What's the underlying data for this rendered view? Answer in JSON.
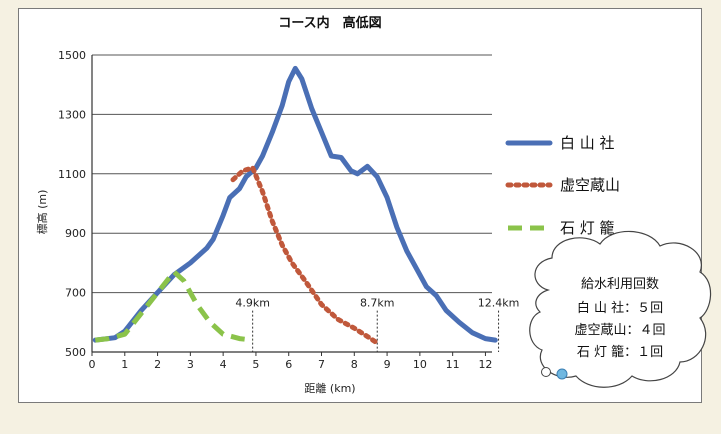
{
  "chart_data": {
    "type": "line",
    "title": "コース内　高低図",
    "xlabel": "距離 (km)",
    "ylabel": "標高 (m)",
    "xlim": [
      0,
      12.2
    ],
    "ylim": [
      500,
      1500
    ],
    "x_ticks": [
      0,
      1,
      2,
      3,
      4,
      5,
      6,
      7,
      8,
      9,
      10,
      11,
      12
    ],
    "y_ticks": [
      500,
      700,
      900,
      1100,
      1300,
      1500
    ],
    "grid": "horizontal",
    "legend_position": "right",
    "series": [
      {
        "name": "白 山 社",
        "color": "#4a6fb5",
        "style": "solid",
        "points": [
          [
            0.1,
            540
          ],
          [
            0.7,
            548
          ],
          [
            1.0,
            570
          ],
          [
            1.5,
            640
          ],
          [
            2.0,
            700
          ],
          [
            2.5,
            760
          ],
          [
            3.0,
            800
          ],
          [
            3.5,
            850
          ],
          [
            3.7,
            880
          ],
          [
            4.0,
            960
          ],
          [
            4.2,
            1020
          ],
          [
            4.5,
            1050
          ],
          [
            4.7,
            1090
          ],
          [
            5.0,
            1120
          ],
          [
            5.2,
            1160
          ],
          [
            5.5,
            1240
          ],
          [
            5.8,
            1330
          ],
          [
            6.0,
            1410
          ],
          [
            6.2,
            1455
          ],
          [
            6.4,
            1420
          ],
          [
            6.7,
            1320
          ],
          [
            7.0,
            1240
          ],
          [
            7.3,
            1160
          ],
          [
            7.6,
            1155
          ],
          [
            7.9,
            1110
          ],
          [
            8.1,
            1100
          ],
          [
            8.4,
            1125
          ],
          [
            8.7,
            1090
          ],
          [
            9.0,
            1020
          ],
          [
            9.3,
            920
          ],
          [
            9.6,
            840
          ],
          [
            9.9,
            780
          ],
          [
            10.2,
            720
          ],
          [
            10.5,
            690
          ],
          [
            10.8,
            640
          ],
          [
            11.2,
            600
          ],
          [
            11.6,
            565
          ],
          [
            12.0,
            545
          ],
          [
            12.3,
            540
          ]
        ]
      },
      {
        "name": "虚空蔵山",
        "color": "#c0583b",
        "style": "dotted",
        "points": [
          [
            4.3,
            1080
          ],
          [
            4.6,
            1110
          ],
          [
            4.9,
            1120
          ],
          [
            5.2,
            1040
          ],
          [
            5.5,
            940
          ],
          [
            5.8,
            860
          ],
          [
            6.1,
            800
          ],
          [
            6.5,
            740
          ],
          [
            7.0,
            660
          ],
          [
            7.5,
            610
          ],
          [
            8.0,
            580
          ],
          [
            8.5,
            545
          ],
          [
            8.7,
            530
          ]
        ]
      },
      {
        "name": "石 灯 籠",
        "color": "#8bc34a",
        "style": "dashed",
        "points": [
          [
            0.1,
            540
          ],
          [
            0.5,
            545
          ],
          [
            1.0,
            560
          ],
          [
            1.5,
            630
          ],
          [
            2.0,
            700
          ],
          [
            2.5,
            770
          ],
          [
            2.8,
            740
          ],
          [
            3.2,
            660
          ],
          [
            3.6,
            600
          ],
          [
            4.0,
            560
          ],
          [
            4.5,
            545
          ],
          [
            4.9,
            540
          ]
        ]
      }
    ],
    "annotations": [
      {
        "x": 4.9,
        "label": "4.9km"
      },
      {
        "x": 8.7,
        "label": "8.7km"
      },
      {
        "x": 12.4,
        "label": "12.4km"
      }
    ]
  },
  "info_box": {
    "title": "給水利用回数",
    "lines": [
      "白 山 社：５回",
      "虚空蔵山：４回",
      "石 灯 籠：１回"
    ]
  }
}
